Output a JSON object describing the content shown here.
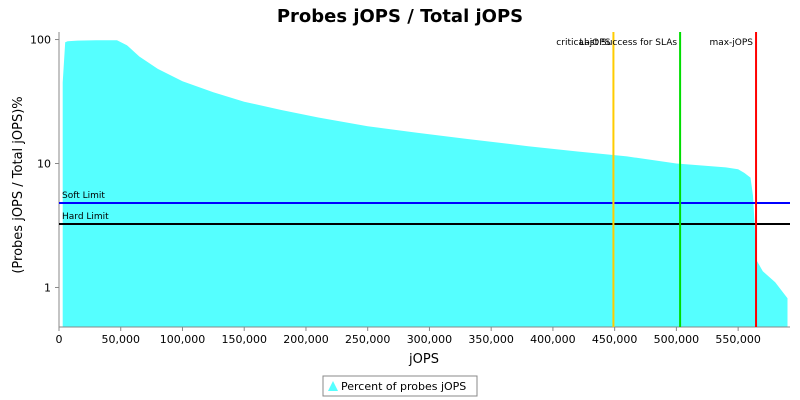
{
  "chart_data": {
    "type": "area",
    "title": "Probes jOPS / Total jOPS",
    "xlabel": "jOPS",
    "ylabel": "(Probes jOPS / Total jOPS)%",
    "y_scale": "log",
    "xlim": [
      0,
      592000
    ],
    "ylim": [
      0.48,
      115
    ],
    "x_ticks": [
      0,
      50000,
      100000,
      150000,
      200000,
      250000,
      300000,
      350000,
      400000,
      450000,
      500000,
      550000
    ],
    "x_tick_labels": [
      "0",
      "50,000",
      "100,000",
      "150,000",
      "200,000",
      "250,000",
      "300,000",
      "350,000",
      "400,000",
      "450,000",
      "500,000",
      "550,000"
    ],
    "y_ticks": [
      1,
      10,
      100
    ],
    "y_tick_labels": [
      "1",
      "10",
      "100"
    ],
    "series": [
      {
        "name": "Percent of probes jOPS",
        "color": "#55ffff",
        "x": [
          3000,
          5000,
          7000,
          15000,
          30000,
          47000,
          55000,
          65000,
          80000,
          100000,
          125000,
          150000,
          180000,
          210000,
          250000,
          290000,
          330000,
          380000,
          420000,
          460000,
          500000,
          540000,
          550000,
          555000,
          560000,
          562000,
          565000,
          570000,
          580000,
          590000
        ],
        "values": [
          45,
          95,
          97,
          98,
          98.5,
          98.5,
          90,
          73,
          58,
          46,
          37.5,
          31.5,
          27,
          23.5,
          20,
          17.7,
          15.8,
          13.8,
          12.5,
          11.4,
          10,
          9.3,
          9,
          8.4,
          7.7,
          5.5,
          1.65,
          1.35,
          1.1,
          0.82
        ]
      }
    ],
    "horizontal_lines": [
      {
        "name": "Soft Limit",
        "label": "Soft Limit",
        "y": 4.8,
        "color": "#0000ff"
      },
      {
        "name": "Hard Limit",
        "label": "Hard Limit",
        "y": 3.25,
        "color": "#000000"
      }
    ],
    "vertical_lines": [
      {
        "name": "critical-jOPS",
        "label": "critical-jOPS",
        "x": 449000,
        "color": "#ffcc00"
      },
      {
        "name": "Last Success for SLAs",
        "label": "Last Success for SLAs",
        "x": 503000,
        "color": "#00dd00"
      },
      {
        "name": "max-jOPS",
        "label": "max-jOPS",
        "x": 564500,
        "color": "#ff0000"
      }
    ],
    "legend": {
      "position": "bottom",
      "entries": [
        "Percent of probes jOPS"
      ]
    }
  }
}
